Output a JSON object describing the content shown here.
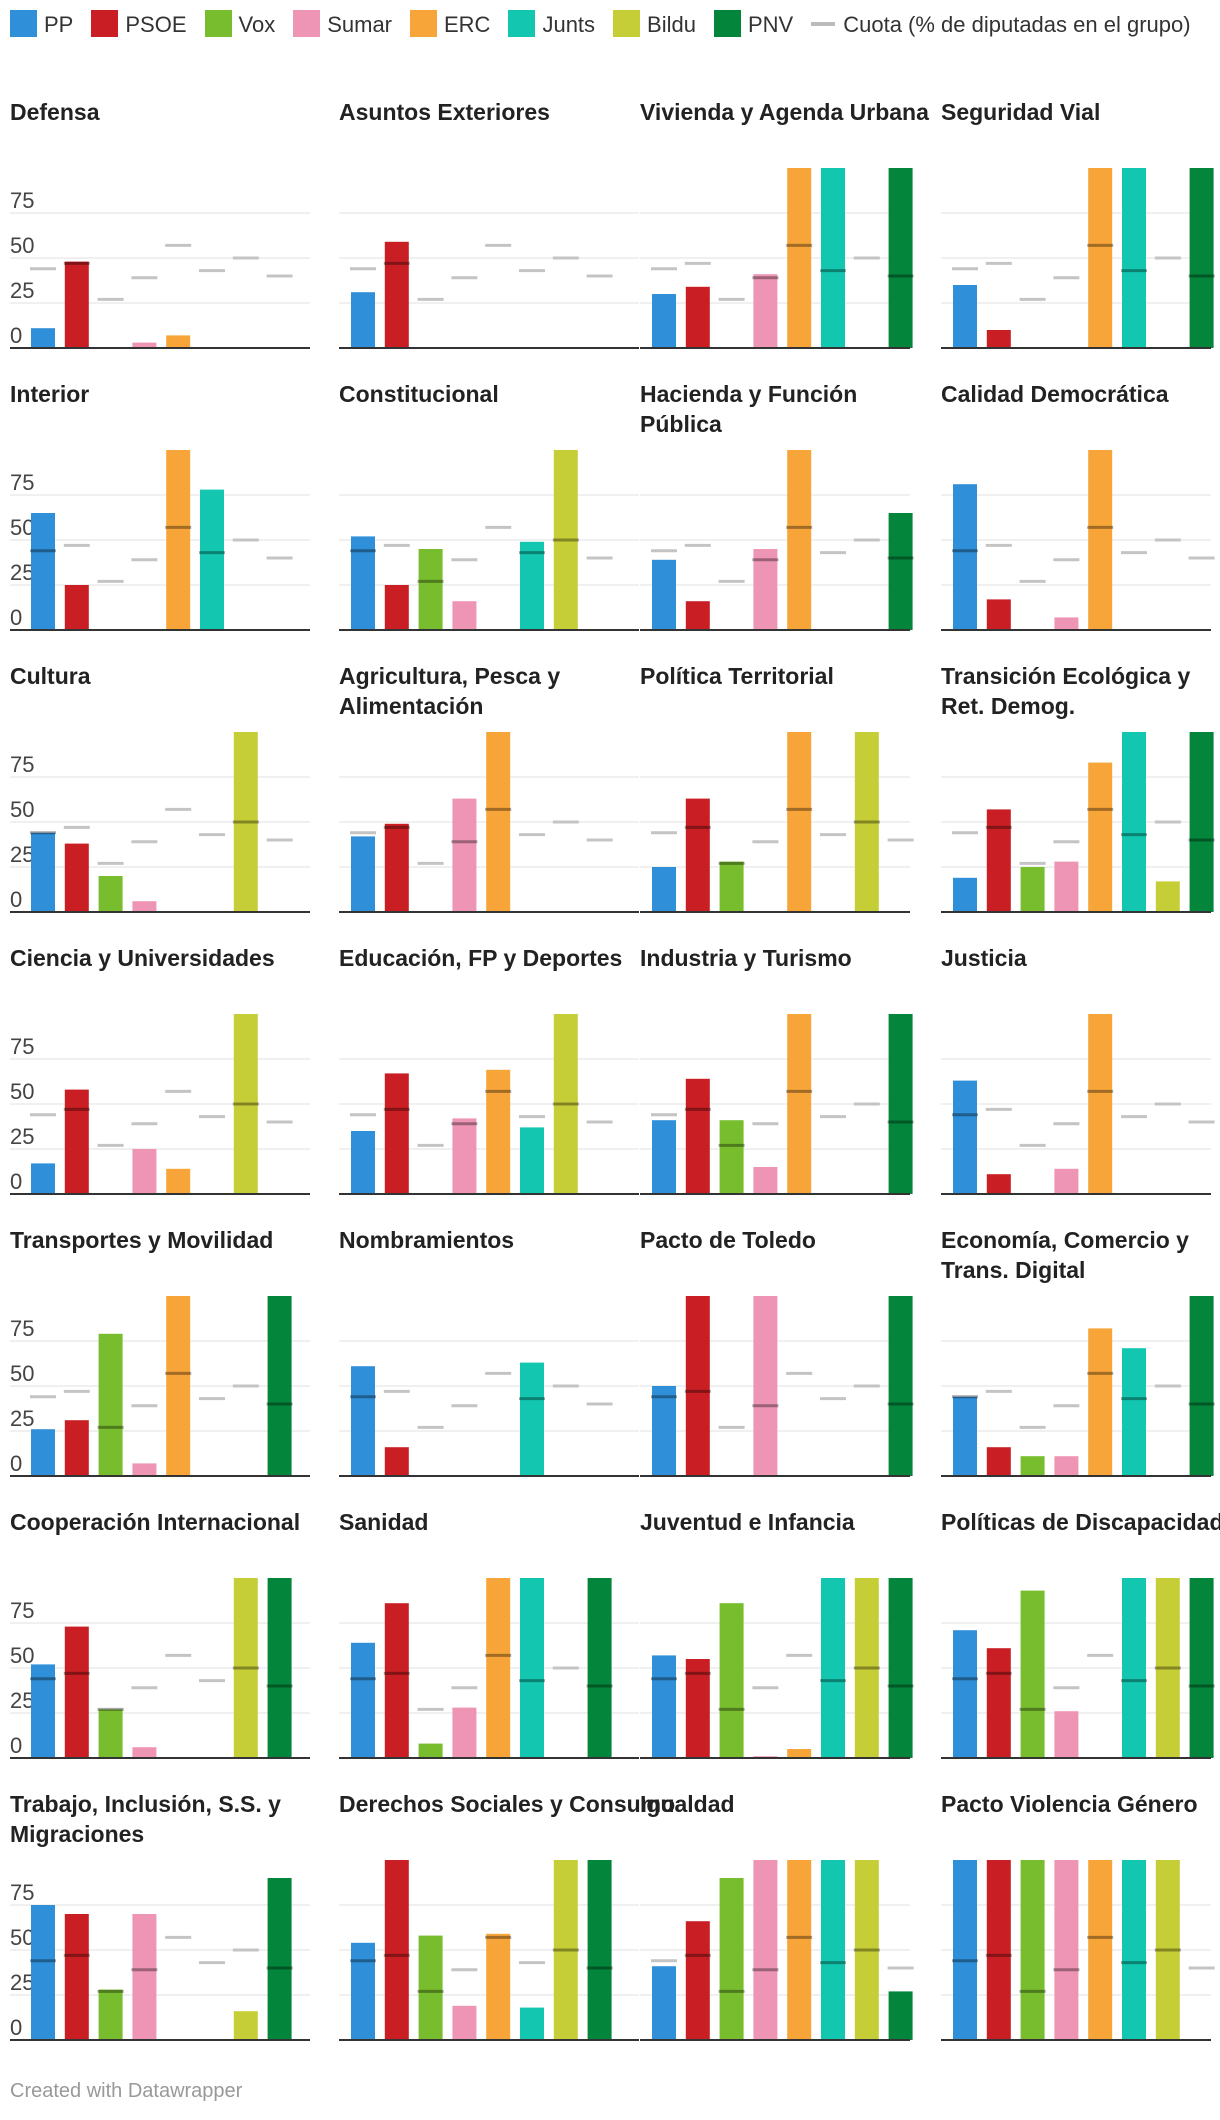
{
  "legend": {
    "parties": [
      {
        "name": "PP",
        "color": "#2f8fd8"
      },
      {
        "name": "PSOE",
        "color": "#c81e24"
      },
      {
        "name": "Vox",
        "color": "#78bd2d"
      },
      {
        "name": "Sumar",
        "color": "#ee95b5"
      },
      {
        "name": "ERC",
        "color": "#f7a539"
      },
      {
        "name": "Junts",
        "color": "#12c6b0"
      },
      {
        "name": "Bildu",
        "color": "#c6ce37"
      },
      {
        "name": "PNV",
        "color": "#03853b"
      }
    ],
    "quota_label": "Cuota (% de diputadas en el grupo)"
  },
  "footer": "Created with Datawrapper",
  "chart_data": {
    "type": "bar",
    "categories": [
      "PP",
      "PSOE",
      "Vox",
      "Sumar",
      "ERC",
      "Junts",
      "Bildu",
      "PNV"
    ],
    "ylim": [
      0,
      100
    ],
    "yticks": [
      0,
      25,
      50,
      75
    ],
    "quota": [
      44,
      47,
      27,
      39,
      57,
      43,
      50,
      40
    ],
    "panels": [
      {
        "title": "Defensa",
        "values": [
          11,
          48,
          0,
          3,
          7,
          0,
          0,
          0
        ]
      },
      {
        "title": "Asuntos Exteriores",
        "values": [
          31,
          59,
          0,
          0,
          0,
          0,
          0,
          0
        ]
      },
      {
        "title": "Vivienda y Agenda Urbana",
        "values": [
          30,
          34,
          0,
          41,
          100,
          100,
          0,
          100
        ]
      },
      {
        "title": "Seguridad Vial",
        "values": [
          35,
          10,
          0,
          0,
          100,
          100,
          0,
          100
        ]
      },
      {
        "title": "Interior",
        "values": [
          65,
          25,
          0,
          0,
          100,
          78,
          0,
          0
        ]
      },
      {
        "title": "Constitucional",
        "values": [
          52,
          25,
          45,
          16,
          0,
          49,
          100,
          0
        ]
      },
      {
        "title": "Hacienda y Función Pública",
        "values": [
          39,
          16,
          0,
          45,
          100,
          0,
          0,
          65
        ]
      },
      {
        "title": "Calidad Democrática",
        "values": [
          81,
          17,
          0,
          7,
          100,
          0,
          0,
          0
        ]
      },
      {
        "title": "Cultura",
        "values": [
          44,
          38,
          20,
          6,
          0,
          0,
          100,
          0
        ]
      },
      {
        "title": "Agricultura, Pesca y Alimentación",
        "values": [
          42,
          49,
          0,
          63,
          100,
          0,
          0,
          0
        ]
      },
      {
        "title": "Política Territorial",
        "values": [
          25,
          63,
          28,
          0,
          100,
          0,
          100,
          0
        ]
      },
      {
        "title": "Transición Ecológica y Ret. Demog.",
        "values": [
          19,
          57,
          25,
          28,
          83,
          100,
          17,
          100
        ]
      },
      {
        "title": "Ciencia y Universidades",
        "values": [
          17,
          58,
          0,
          25,
          14,
          0,
          100,
          0
        ]
      },
      {
        "title": "Educación, FP y Deportes",
        "values": [
          35,
          67,
          0,
          42,
          69,
          37,
          100,
          0
        ]
      },
      {
        "title": "Industria y Turismo",
        "values": [
          41,
          64,
          41,
          15,
          100,
          0,
          0,
          100
        ]
      },
      {
        "title": "Justicia",
        "values": [
          63,
          11,
          0,
          14,
          100,
          0,
          0,
          0
        ]
      },
      {
        "title": "Transportes y Movilidad",
        "values": [
          26,
          31,
          79,
          7,
          100,
          0,
          0,
          100
        ]
      },
      {
        "title": "Nombramientos",
        "values": [
          61,
          16,
          0,
          0,
          0,
          63,
          0,
          0
        ]
      },
      {
        "title": "Pacto de Toledo",
        "values": [
          50,
          100,
          0,
          100,
          0,
          0,
          0,
          100
        ]
      },
      {
        "title": "Economía, Comercio y Trans. Digital",
        "values": [
          44,
          16,
          11,
          11,
          82,
          71,
          0,
          100
        ]
      },
      {
        "title": "Cooperación Internacional",
        "values": [
          52,
          73,
          27,
          6,
          0,
          0,
          100,
          100
        ]
      },
      {
        "title": "Sanidad",
        "values": [
          64,
          86,
          8,
          28,
          100,
          100,
          0,
          100
        ]
      },
      {
        "title": "Juventud e Infancia",
        "values": [
          57,
          55,
          86,
          1,
          5,
          100,
          100,
          100
        ]
      },
      {
        "title": "Políticas de Discapacidad",
        "values": [
          71,
          61,
          93,
          26,
          0,
          100,
          100,
          100
        ]
      },
      {
        "title": "Trabajo, Inclusión, S.S. y Migraciones",
        "values": [
          75,
          70,
          28,
          70,
          0,
          0,
          16,
          90
        ]
      },
      {
        "title": "Derechos Sociales y Consumo",
        "values": [
          54,
          100,
          58,
          19,
          59,
          18,
          100,
          100
        ]
      },
      {
        "title": "Igualdad",
        "values": [
          41,
          66,
          90,
          100,
          100,
          100,
          100,
          27
        ]
      },
      {
        "title": "Pacto Violencia Género",
        "values": [
          100,
          100,
          100,
          100,
          100,
          100,
          100,
          0
        ]
      }
    ]
  }
}
